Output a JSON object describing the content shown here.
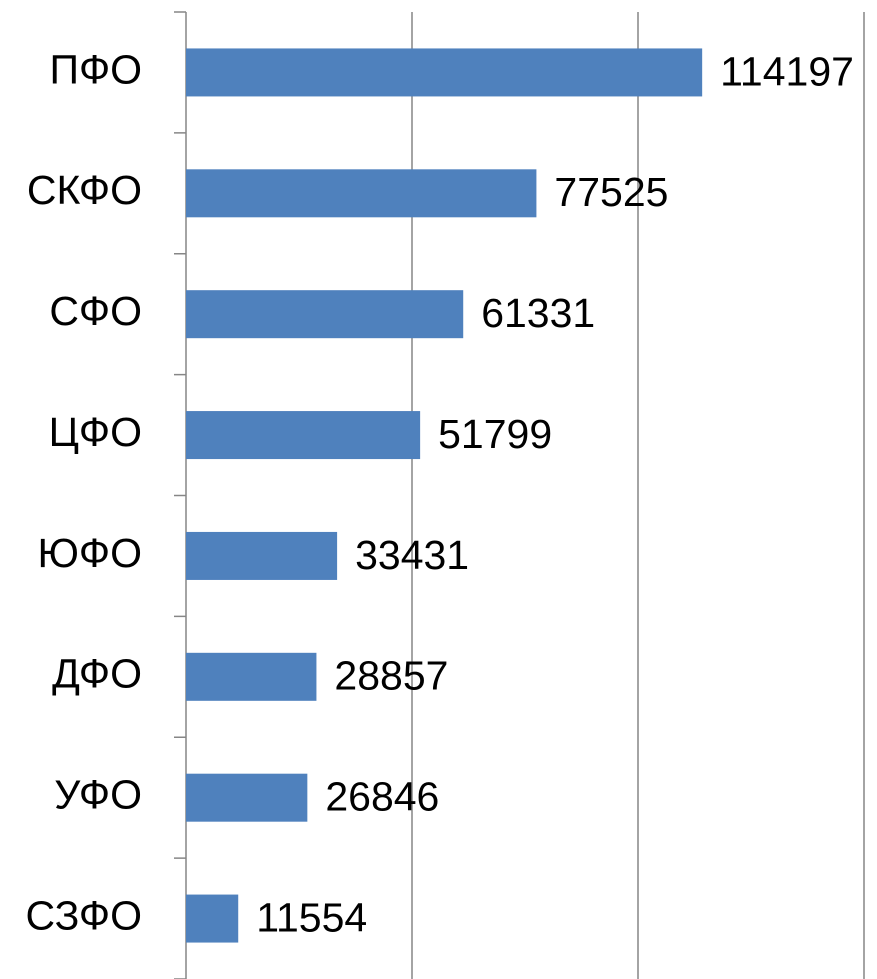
{
  "chart_data": {
    "type": "bar",
    "orientation": "horizontal",
    "categories": [
      "ПФО",
      "СКФО",
      "СФО",
      "ЦФО",
      "ЮФО",
      "ДФО",
      "УФО",
      "СЗФО"
    ],
    "values": [
      114197,
      77525,
      61331,
      51799,
      33431,
      28857,
      26846,
      11554
    ],
    "color": "#4f81bd",
    "xlim": [
      0,
      150000
    ],
    "xticks": [
      0,
      50000,
      100000,
      150000
    ],
    "xtick_labels": false,
    "grid": true,
    "data_labels": true
  }
}
